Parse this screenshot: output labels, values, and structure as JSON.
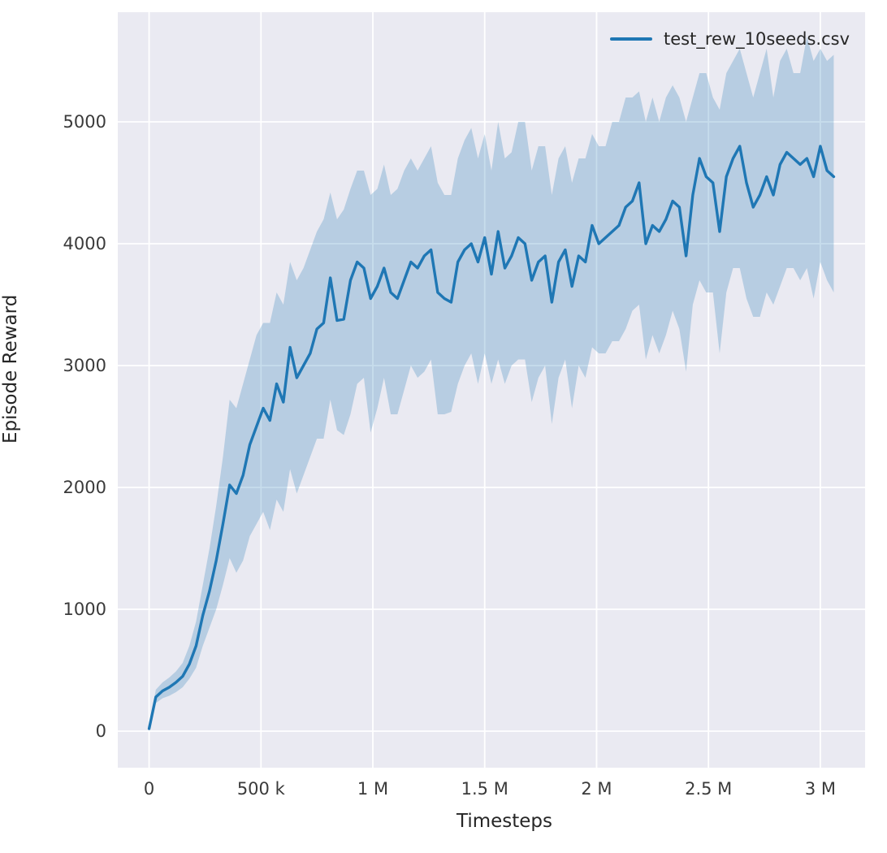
{
  "chart_data": {
    "type": "line",
    "title": "",
    "xlabel": "Timesteps",
    "ylabel": "Episode Reward",
    "legend_position": "upper right",
    "grid": true,
    "legend": [
      {
        "label": "test_rew_10seeds.csv",
        "color": "#1f77b4"
      }
    ],
    "colors": {
      "line": "#1f77b4",
      "band": "#1f77b4",
      "band_opacity": 0.25,
      "plot_bg": "#eaeaf2",
      "grid": "#ffffff",
      "text": "#262626"
    },
    "xlim": [
      -140000,
      3200000
    ],
    "ylim": [
      -300,
      5900
    ],
    "xticks": [
      {
        "value": 0,
        "label": "0"
      },
      {
        "value": 500000,
        "label": "500 k"
      },
      {
        "value": 1000000,
        "label": "1 M"
      },
      {
        "value": 1500000,
        "label": "1.5 M"
      },
      {
        "value": 2000000,
        "label": "2 M"
      },
      {
        "value": 2500000,
        "label": "2.5 M"
      },
      {
        "value": 3000000,
        "label": "3 M"
      }
    ],
    "yticks": [
      {
        "value": 0,
        "label": "0"
      },
      {
        "value": 1000,
        "label": "1000"
      },
      {
        "value": 2000,
        "label": "2000"
      },
      {
        "value": 3000,
        "label": "3000"
      },
      {
        "value": 4000,
        "label": "4000"
      },
      {
        "value": 5000,
        "label": "5000"
      }
    ],
    "x_start": 0,
    "x_step": 30000,
    "series": [
      {
        "name": "test_rew_10seeds.csv",
        "mean": [
          20,
          280,
          330,
          360,
          400,
          450,
          550,
          700,
          950,
          1150,
          1400,
          1700,
          2020,
          1950,
          2100,
          2350,
          2500,
          2650,
          2550,
          2850,
          2700,
          3150,
          2900,
          3000,
          3100,
          3300,
          3350,
          3720,
          3370,
          3380,
          3700,
          3850,
          3800,
          3550,
          3650,
          3800,
          3600,
          3550,
          3700,
          3850,
          3800,
          3900,
          3950,
          3600,
          3550,
          3520,
          3850,
          3950,
          4000,
          3850,
          4050,
          3750,
          4100,
          3800,
          3900,
          4050,
          4000,
          3700,
          3850,
          3900,
          3520,
          3850,
          3950,
          3650,
          3900,
          3850,
          4150,
          4000,
          4050,
          4100,
          4150,
          4300,
          4350,
          4500,
          4000,
          4150,
          4100,
          4200,
          4350,
          4300,
          3900,
          4400,
          4700,
          4550,
          4500,
          4100,
          4550,
          4700,
          4800,
          4500,
          4300,
          4400,
          4550,
          4400,
          4650,
          4750,
          4700,
          4650,
          4700,
          4550,
          4800,
          4600,
          4550
        ],
        "lower": [
          10,
          230,
          270,
          290,
          320,
          360,
          430,
          520,
          700,
          850,
          1000,
          1200,
          1420,
          1300,
          1400,
          1600,
          1700,
          1800,
          1650,
          1900,
          1800,
          2150,
          1950,
          2100,
          2250,
          2400,
          2400,
          2720,
          2470,
          2430,
          2600,
          2850,
          2900,
          2450,
          2650,
          2900,
          2600,
          2600,
          2800,
          3000,
          2900,
          2950,
          3050,
          2600,
          2600,
          2620,
          2850,
          3000,
          3100,
          2850,
          3100,
          2850,
          3050,
          2850,
          3000,
          3050,
          3050,
          2700,
          2900,
          3000,
          2520,
          2900,
          3050,
          2650,
          3000,
          2900,
          3150,
          3100,
          3100,
          3200,
          3200,
          3300,
          3450,
          3500,
          3050,
          3250,
          3100,
          3250,
          3450,
          3300,
          2950,
          3500,
          3700,
          3600,
          3600,
          3100,
          3600,
          3800,
          3800,
          3550,
          3400,
          3400,
          3600,
          3500,
          3650,
          3800,
          3800,
          3700,
          3800,
          3550,
          3850,
          3700,
          3600
        ],
        "upper": [
          40,
          340,
          400,
          440,
          490,
          560,
          700,
          900,
          1200,
          1500,
          1850,
          2250,
          2720,
          2650,
          2850,
          3050,
          3250,
          3350,
          3350,
          3600,
          3500,
          3850,
          3700,
          3800,
          3950,
          4100,
          4200,
          4420,
          4200,
          4280,
          4450,
          4600,
          4600,
          4400,
          4450,
          4650,
          4400,
          4450,
          4600,
          4700,
          4600,
          4700,
          4800,
          4500,
          4400,
          4400,
          4700,
          4850,
          4950,
          4700,
          4900,
          4600,
          5000,
          4700,
          4750,
          5000,
          5000,
          4600,
          4800,
          4800,
          4400,
          4700,
          4800,
          4500,
          4700,
          4700,
          4900,
          4800,
          4800,
          5000,
          5000,
          5200,
          5200,
          5250,
          5000,
          5200,
          5000,
          5200,
          5300,
          5200,
          5000,
          5200,
          5400,
          5400,
          5200,
          5100,
          5400,
          5500,
          5600,
          5400,
          5200,
          5400,
          5600,
          5200,
          5500,
          5600,
          5400,
          5400,
          5700,
          5500,
          5600,
          5500,
          5550
        ]
      }
    ]
  }
}
